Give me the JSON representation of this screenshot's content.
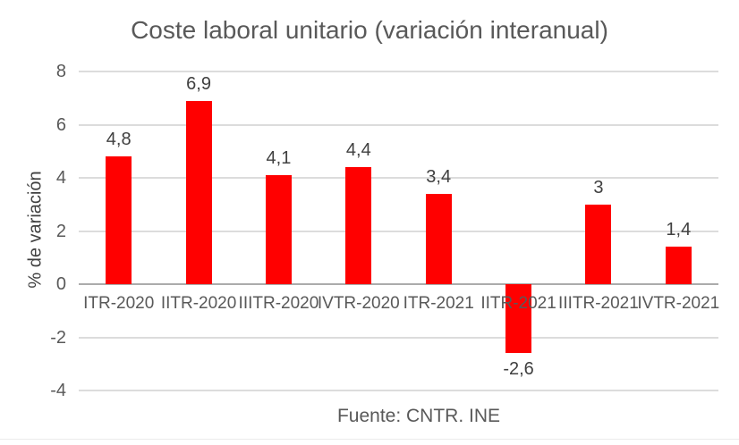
{
  "chart_data": {
    "type": "bar",
    "title": "Coste laboral unitario (variación interanual)",
    "categories": [
      "ITR-2020",
      "IITR-2020",
      "IIITR-2020",
      "IVTR-2020",
      "ITR-2021",
      "IITR-2021",
      "IIITR-2021",
      "IVTR-2021"
    ],
    "values": [
      4.8,
      6.9,
      4.1,
      4.4,
      3.4,
      -2.6,
      3,
      1.4
    ],
    "data_labels": [
      "4,8",
      "6,9",
      "4,1",
      "4,4",
      "3,4",
      "-2,6",
      "3",
      "1,4"
    ],
    "xlabel": "Fuente: CNTR. INE",
    "ylabel": "% de variación",
    "ylim": [
      -4,
      8
    ],
    "yticks": [
      8,
      6,
      4,
      2,
      0,
      -2,
      -4
    ],
    "ytick_labels": [
      "8",
      "6",
      "4",
      "2",
      "0",
      "-2",
      "-4"
    ],
    "grid": true,
    "legend": "none",
    "bar_color": "#ff0000",
    "gridline_color": "#dcdcdc",
    "axis_line_color": "#ababab",
    "title_color": "#595959",
    "tick_label_color": "#595959",
    "data_label_color": "#404040"
  }
}
